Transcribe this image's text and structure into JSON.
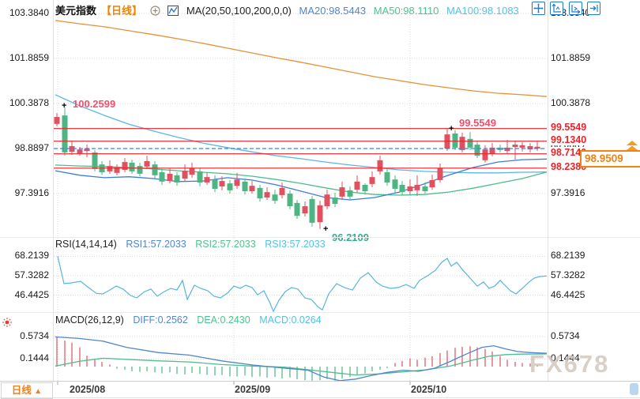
{
  "ui": {
    "marker": "+",
    "watermark": "FX678",
    "bottom": {
      "period": "日线",
      "arrow": "▲"
    },
    "toolbar_icons": [
      "pan-icon",
      "scale-y-axis-icon",
      "scale-x-axis-icon",
      "go-to-latest-icon"
    ],
    "header_icons": [
      "add-indicator-icon",
      "ma-overlay-icon"
    ],
    "colors": {
      "up": "#e0515f",
      "down": "#4eb482",
      "level_line": "#e8232a",
      "accent_orange": "#f08312",
      "ref_dash": "#3f7fe0",
      "ma20": "#3d7bd8",
      "ma50": "#4bbd8c",
      "ma100": "#59b7e6",
      "ma200": "#e89035",
      "rsi_line": "#57b5dd",
      "diff_line": "#4f86cf",
      "dea_line": "#4fbd8c",
      "hist_pos": "#e0515f",
      "hist_neg": "#4eb482",
      "grid": "#d8d8d8"
    }
  },
  "chart_data": [
    {
      "type": "candlestick",
      "header": {
        "symbol": "美元指数",
        "period": "【日线】",
        "formula": "MA(20,50,100,200,0,0)",
        "ma20": "MA20:98.5443",
        "ma50": "MA50:98.1110",
        "ma100": "MA100:98.1083"
      },
      "y_ticks": [
        "103.3840",
        "101.8859",
        "100.3878",
        "98.8897",
        "97.3916"
      ],
      "x_ticks": [
        "2025/08",
        "2025/09",
        "2025/10"
      ],
      "levels": [
        "99.5549",
        "99.1340",
        "98.7140",
        "98.2380"
      ],
      "reference_line": 98.89,
      "last_price": "98.9509",
      "annotations": {
        "high": "100.2599",
        "peak": "99.5549",
        "low": "96.2109"
      },
      "candles": [
        [
          72,
          99.71,
          100.07,
          99.63,
          99.94
        ],
        [
          82,
          99.99,
          100.26,
          98.65,
          98.76
        ],
        [
          91,
          98.78,
          99.13,
          98.68,
          98.97
        ],
        [
          101,
          98.73,
          98.94,
          98.65,
          98.86
        ],
        [
          110,
          98.81,
          99.02,
          98.6,
          98.89
        ],
        [
          120,
          98.76,
          98.84,
          98.13,
          98.21
        ],
        [
          129,
          98.36,
          98.47,
          98.02,
          98.1
        ],
        [
          139,
          98.13,
          98.5,
          98.05,
          98.31
        ],
        [
          148,
          98.08,
          98.36,
          98.0,
          98.26
        ],
        [
          158,
          98.18,
          98.57,
          98.1,
          98.44
        ],
        [
          167,
          98.42,
          98.52,
          98.05,
          98.13
        ],
        [
          177,
          98.31,
          98.42,
          97.97,
          98.05
        ],
        [
          186,
          98.29,
          98.65,
          98.21,
          98.47
        ],
        [
          196,
          98.36,
          98.47,
          97.89,
          98.0
        ],
        [
          205,
          98.1,
          98.21,
          97.68,
          97.79
        ],
        [
          215,
          97.81,
          98.23,
          97.73,
          98.05
        ],
        [
          224,
          98.0,
          98.1,
          97.65,
          97.76
        ],
        [
          234,
          97.89,
          98.36,
          97.79,
          98.15
        ],
        [
          243,
          98.02,
          98.42,
          97.92,
          98.23
        ],
        [
          253,
          98.13,
          98.26,
          97.63,
          97.76
        ],
        [
          262,
          97.76,
          98.08,
          97.68,
          97.94
        ],
        [
          272,
          97.86,
          98.0,
          97.44,
          97.55
        ],
        [
          281,
          97.63,
          97.97,
          97.5,
          97.81
        ],
        [
          291,
          97.73,
          97.84,
          97.39,
          97.5
        ],
        [
          300,
          97.65,
          98.08,
          97.55,
          97.86
        ],
        [
          310,
          97.79,
          97.89,
          97.36,
          97.47
        ],
        [
          319,
          97.47,
          97.81,
          97.39,
          97.65
        ],
        [
          329,
          97.58,
          97.68,
          97.13,
          97.23
        ],
        [
          338,
          97.26,
          97.6,
          97.18,
          97.44
        ],
        [
          348,
          97.36,
          97.52,
          97.05,
          97.15
        ],
        [
          357,
          97.34,
          97.76,
          97.23,
          97.58
        ],
        [
          367,
          97.39,
          97.5,
          96.87,
          96.97
        ],
        [
          376,
          97.08,
          97.18,
          96.55,
          96.65
        ],
        [
          386,
          96.73,
          97.13,
          96.63,
          96.97
        ],
        [
          395,
          97.21,
          97.31,
          96.29,
          96.42
        ],
        [
          405,
          96.44,
          97.15,
          96.21,
          97.0
        ],
        [
          414,
          96.97,
          97.52,
          96.87,
          97.36
        ],
        [
          424,
          97.26,
          97.42,
          96.94,
          97.05
        ],
        [
          433,
          97.29,
          97.79,
          97.18,
          97.6
        ],
        [
          443,
          97.5,
          97.63,
          97.18,
          97.29
        ],
        [
          452,
          97.52,
          98.0,
          97.42,
          97.79
        ],
        [
          462,
          97.68,
          97.73,
          97.36,
          97.47
        ],
        [
          471,
          97.71,
          98.13,
          97.6,
          97.94
        ],
        [
          481,
          98.13,
          98.65,
          98.02,
          98.5
        ],
        [
          490,
          98.1,
          98.23,
          97.65,
          97.76
        ],
        [
          500,
          97.86,
          98.0,
          97.42,
          97.55
        ],
        [
          509,
          97.68,
          97.81,
          97.34,
          97.44
        ],
        [
          519,
          97.47,
          97.86,
          97.36,
          97.63
        ],
        [
          528,
          97.5,
          98.0,
          97.31,
          97.68
        ],
        [
          538,
          97.63,
          97.76,
          97.39,
          97.47
        ],
        [
          547,
          97.6,
          98.02,
          97.52,
          97.84
        ],
        [
          557,
          97.84,
          98.39,
          97.76,
          98.23
        ],
        [
          566,
          98.89,
          99.55,
          98.81,
          99.36
        ],
        [
          576,
          99.39,
          99.5,
          98.84,
          98.92
        ],
        [
          585,
          98.84,
          99.42,
          98.76,
          99.28
        ],
        [
          595,
          99.21,
          99.44,
          98.84,
          98.92
        ],
        [
          604,
          99.02,
          99.15,
          98.57,
          98.65
        ],
        [
          614,
          98.5,
          99.0,
          98.42,
          98.86
        ],
        [
          623,
          98.71,
          99.07,
          98.63,
          98.92
        ],
        [
          633,
          98.92,
          99.02,
          98.76,
          98.84
        ],
        [
          642,
          98.81,
          99.18,
          98.73,
          98.92
        ],
        [
          652,
          98.94,
          99.15,
          98.52,
          99.02
        ],
        [
          661,
          98.92,
          99.1,
          98.79,
          99.0
        ],
        [
          671,
          98.86,
          99.07,
          98.76,
          98.97
        ],
        [
          680,
          98.89,
          99.13,
          98.81,
          98.95
        ]
      ],
      "ma_series": [
        {
          "name": "MA200",
          "values": [
            103.15,
            103.04,
            102.94,
            102.81,
            102.68,
            102.54,
            102.39,
            102.23,
            102.07,
            101.91,
            101.76,
            101.6,
            101.44,
            101.28,
            101.15,
            101.02,
            100.91,
            100.81,
            100.73,
            100.68,
            100.62
          ]
        },
        {
          "name": "MA100",
          "values": [
            100.68,
            100.31,
            99.99,
            99.7,
            99.47,
            99.26,
            99.07,
            98.92,
            98.78,
            98.65,
            98.55,
            98.44,
            98.34,
            98.26,
            98.18,
            98.13,
            98.1,
            98.08,
            98.08,
            98.1,
            98.11
          ]
        },
        {
          "name": "MA50",
          "values": [
            98.34,
            98.31,
            98.29,
            98.26,
            98.21,
            98.15,
            98.1,
            98.05,
            97.97,
            97.86,
            97.73,
            97.58,
            97.44,
            97.36,
            97.34,
            97.36,
            97.44,
            97.57,
            97.73,
            97.89,
            98.11
          ]
        },
        {
          "name": "MA20",
          "values": [
            98.15,
            98.0,
            97.92,
            97.95,
            97.89,
            97.79,
            97.81,
            97.92,
            97.84,
            97.68,
            97.47,
            97.26,
            97.18,
            97.26,
            97.44,
            97.71,
            98.0,
            98.26,
            98.44,
            98.52,
            98.54
          ]
        }
      ]
    },
    {
      "type": "line",
      "name": "RSI",
      "header": {
        "formula": "RSI(14,14,14)",
        "r1": "RSI1:57.2033",
        "r2": "RSI2:57.2033",
        "r3": "RSI3:57.2033"
      },
      "y_ticks": [
        "68.2139",
        "57.3282",
        "46.4425"
      ],
      "points": [
        [
          73,
          68.4
        ],
        [
          81,
          52.9
        ],
        [
          90,
          53.3
        ],
        [
          102,
          54.2
        ],
        [
          112,
          50.7
        ],
        [
          122,
          47.4
        ],
        [
          130,
          47.1
        ],
        [
          139,
          49.3
        ],
        [
          147,
          51.5
        ],
        [
          156,
          49.8
        ],
        [
          165,
          46.2
        ],
        [
          173,
          44.9
        ],
        [
          183,
          48.4
        ],
        [
          191,
          49.8
        ],
        [
          199,
          45.8
        ],
        [
          208,
          48.4
        ],
        [
          216,
          50.2
        ],
        [
          224,
          49.3
        ],
        [
          231,
          54.7
        ],
        [
          237,
          44.0
        ],
        [
          246,
          52.0
        ],
        [
          254,
          50.2
        ],
        [
          263,
          48.9
        ],
        [
          271,
          45.8
        ],
        [
          279,
          44.9
        ],
        [
          288,
          47.6
        ],
        [
          296,
          51.5
        ],
        [
          304,
          50.2
        ],
        [
          311,
          52.0
        ],
        [
          319,
          50.7
        ],
        [
          326,
          46.6
        ],
        [
          334,
          48.9
        ],
        [
          341,
          42.7
        ],
        [
          346,
          37.3
        ],
        [
          353,
          43.5
        ],
        [
          361,
          48.4
        ],
        [
          369,
          50.7
        ],
        [
          377,
          49.8
        ],
        [
          386,
          44.9
        ],
        [
          394,
          44.0
        ],
        [
          403,
          39.6
        ],
        [
          408,
          38.2
        ],
        [
          416,
          47.1
        ],
        [
          426,
          52.9
        ],
        [
          436,
          50.7
        ],
        [
          446,
          49.3
        ],
        [
          456,
          56.0
        ],
        [
          466,
          59.1
        ],
        [
          476,
          53.8
        ],
        [
          484,
          51.5
        ],
        [
          494,
          50.2
        ],
        [
          504,
          50.7
        ],
        [
          514,
          52.4
        ],
        [
          524,
          50.2
        ],
        [
          531,
          54.7
        ],
        [
          541,
          57.3
        ],
        [
          551,
          60.4
        ],
        [
          559,
          64.9
        ],
        [
          566,
          67.1
        ],
        [
          571,
          62.7
        ],
        [
          578,
          64.9
        ],
        [
          586,
          60.4
        ],
        [
          595,
          56.0
        ],
        [
          604,
          51.5
        ],
        [
          612,
          53.8
        ],
        [
          619,
          50.2
        ],
        [
          626,
          51.5
        ],
        [
          633,
          54.7
        ],
        [
          646,
          48.9
        ],
        [
          653,
          47.1
        ],
        [
          661,
          50.2
        ],
        [
          669,
          53.6
        ],
        [
          676,
          56.0
        ],
        [
          683,
          56.9
        ],
        [
          692,
          57.2
        ]
      ]
    },
    {
      "type": "macd",
      "header": {
        "formula": "MACD(26,12,9)",
        "diff": "DIFF:0.2562",
        "dea": "DEA:0.2430",
        "macd": "MACD:0.0264"
      },
      "y_ticks": [
        "0.5734",
        "0.1444"
      ],
      "diff_points": [
        [
          70,
          0.57
        ],
        [
          100,
          0.54
        ],
        [
          130,
          0.49
        ],
        [
          160,
          0.37
        ],
        [
          200,
          0.27
        ],
        [
          240,
          0.22
        ],
        [
          280,
          0.11
        ],
        [
          320,
          0.03
        ],
        [
          360,
          -0.03
        ],
        [
          390,
          -0.07
        ],
        [
          410,
          -0.2
        ],
        [
          430,
          -0.27
        ],
        [
          450,
          -0.24
        ],
        [
          470,
          -0.17
        ],
        [
          490,
          -0.11
        ],
        [
          510,
          -0.07
        ],
        [
          530,
          -0.09
        ],
        [
          550,
          -0.03
        ],
        [
          570,
          0.1
        ],
        [
          590,
          0.24
        ],
        [
          610,
          0.37
        ],
        [
          625,
          0.4
        ],
        [
          640,
          0.34
        ],
        [
          655,
          0.29
        ],
        [
          670,
          0.27
        ],
        [
          692,
          0.256
        ]
      ],
      "dea_points": [
        [
          70,
          0.01
        ],
        [
          100,
          0.1
        ],
        [
          130,
          0.16
        ],
        [
          160,
          0.14
        ],
        [
          200,
          0.11
        ],
        [
          240,
          0.09
        ],
        [
          280,
          0.04
        ],
        [
          320,
          0.01
        ],
        [
          360,
          -0.01
        ],
        [
          390,
          -0.06
        ],
        [
          420,
          -0.11
        ],
        [
          450,
          -0.16
        ],
        [
          480,
          -0.14
        ],
        [
          510,
          -0.1
        ],
        [
          540,
          -0.06
        ],
        [
          570,
          0.01
        ],
        [
          600,
          0.13
        ],
        [
          620,
          0.2
        ],
        [
          640,
          0.23
        ],
        [
          660,
          0.24
        ],
        [
          692,
          0.243
        ]
      ],
      "hist": [
        0.57,
        0.5,
        0.46,
        0.37,
        0.21,
        0.13,
        0.09,
        0.04,
        -0.04,
        -0.06,
        -0.09,
        -0.1,
        -0.09,
        -0.11,
        -0.13,
        -0.11,
        -0.14,
        -0.15,
        -0.12,
        -0.14,
        -0.16,
        -0.17,
        -0.16,
        -0.19,
        -0.19,
        -0.17,
        -0.2,
        -0.19,
        -0.21,
        -0.2,
        -0.23,
        -0.21,
        -0.24,
        -0.26,
        -0.27,
        -0.26,
        -0.24,
        -0.27,
        -0.23,
        -0.2,
        -0.17,
        -0.13,
        -0.09,
        -0.06,
        -0.03,
        0.07,
        0.11,
        0.16,
        0.13,
        0.17,
        0.2,
        0.26,
        0.31,
        0.36,
        0.38,
        0.39,
        0.37,
        0.34,
        0.29,
        0.2,
        0.13,
        0.09,
        0.07,
        0.06,
        0.03
      ]
    }
  ]
}
